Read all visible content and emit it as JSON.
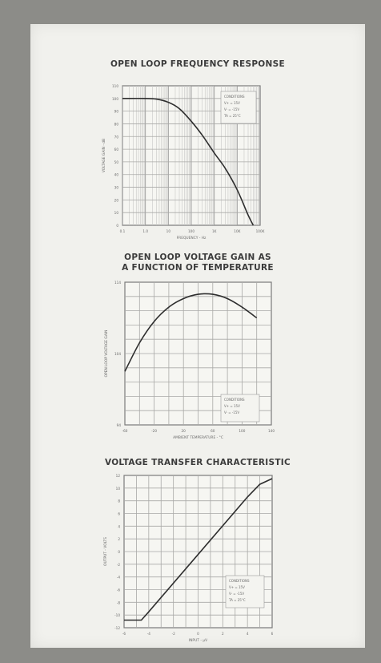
{
  "chart_data": [
    {
      "type": "line",
      "title": "OPEN LOOP FREQUENCY RESPONSE",
      "xlabel": "FREQUENCY - Hz",
      "ylabel": "VOLTAGE GAIN - dB",
      "x_scale": "log",
      "xlim": [
        0.1,
        100000
      ],
      "ylim": [
        0,
        110
      ],
      "x_ticks": [
        "0.1",
        "1.0",
        "10",
        "100",
        "1K",
        "10K",
        "100K"
      ],
      "y_ticks": [
        "0",
        "10",
        "20",
        "30",
        "40",
        "50",
        "60",
        "70",
        "80",
        "90",
        "100",
        "110"
      ],
      "grid": true,
      "legend_placement": "top-right",
      "legend_lines": [
        "CONDITIONS",
        "V+ = 15V",
        "V- = -15V",
        "TA = 25°C"
      ],
      "series": [
        {
          "x": [
            0.1,
            1,
            3,
            10,
            30,
            100,
            300,
            1000,
            3000,
            10000,
            30000,
            50000
          ],
          "y": [
            100,
            100,
            99.5,
            97,
            92,
            82,
            71,
            57,
            45,
            28,
            8,
            0
          ]
        }
      ]
    },
    {
      "type": "line",
      "title": "OPEN LOOP VOLTAGE GAIN AS\nA FUNCTION OF TEMPERATURE",
      "xlabel": "AMBIENT TEMPERATURE - °C",
      "ylabel": "OPEN LOOP VOLTAGE GAIN",
      "xlim": [
        -60,
        140
      ],
      "ylim": [
        94,
        114
      ],
      "x_ticks": [
        "-60",
        "-20",
        "20",
        "60",
        "100",
        "140"
      ],
      "y_ticks": [
        "94",
        "104",
        "114"
      ],
      "grid": true,
      "legend_placement": "bottom-right",
      "legend_lines": [
        "CONDITIONS",
        "V+ = 15V",
        "V- = -15V"
      ],
      "series": [
        {
          "x": [
            -60,
            -40,
            -20,
            0,
            20,
            40,
            60,
            80,
            100,
            120
          ],
          "y": [
            101.5,
            105.5,
            108.5,
            110.5,
            111.7,
            112.3,
            112.3,
            111.7,
            110.5,
            109.0
          ]
        }
      ]
    },
    {
      "type": "line",
      "title": "VOLTAGE TRANSFER CHARACTERISTIC",
      "xlabel": "INPUT - µV",
      "ylabel": "OUTPUT - VOLTS",
      "xlim": [
        -6,
        6
      ],
      "ylim": [
        -12,
        12
      ],
      "x_ticks": [
        "-6",
        "-4",
        "-2",
        "0",
        "2",
        "4",
        "6"
      ],
      "y_ticks": [
        "-12",
        "-10",
        "-8",
        "-6",
        "-4",
        "-2",
        "0",
        "2",
        "4",
        "6",
        "8",
        "10",
        "12"
      ],
      "grid": true,
      "legend_placement": "bottom-right",
      "legend_lines": [
        "CONDITIONS",
        "V+ = 15V",
        "V- = -15V",
        "TA = 25°C"
      ],
      "series": [
        {
          "x": [
            -6,
            -4.6,
            -4,
            4,
            5,
            6
          ],
          "y": [
            -10.8,
            -10.8,
            -9.5,
            8.6,
            10.6,
            11.5
          ]
        }
      ]
    }
  ]
}
